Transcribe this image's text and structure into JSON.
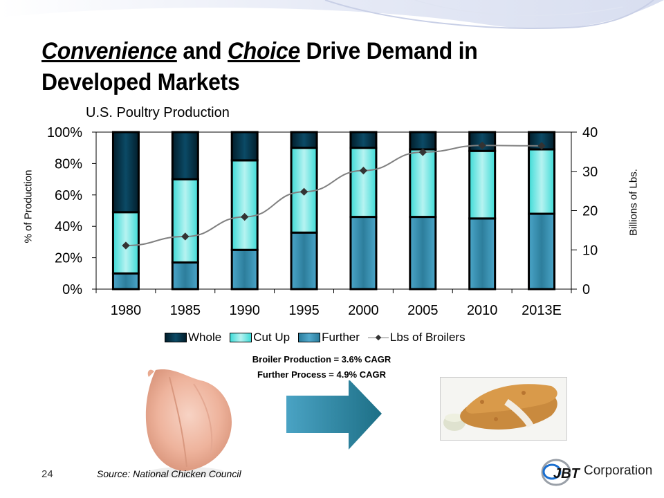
{
  "slide": {
    "title_parts": {
      "w1": "Convenience",
      "w2": " and ",
      "w3": "Choice",
      "w4": " Drive Demand in",
      "line2": "Developed Markets"
    },
    "cagr": [
      "Broiler Production = 3.6% CAGR",
      "Further Process = 4.9% CAGR"
    ],
    "page_number": "24",
    "source": "Source: National Chicken Council",
    "logo": {
      "mark": "JBT",
      "text": "Corporation"
    },
    "images": [
      "raw-whole-chicken",
      "arrow-right",
      "chicken-tenders"
    ]
  },
  "colors": {
    "whole": "#04374d",
    "cut_up": "#7ee8e6",
    "further": "#3e93b5",
    "line": "#808080",
    "marker": "#333333",
    "arrow": "#2f8aa8"
  },
  "chart_data": {
    "type": "bar",
    "stacked": true,
    "title": "U.S. Poultry Production",
    "categories": [
      "1980",
      "1985",
      "1990",
      "1995",
      "2000",
      "2005",
      "2010",
      "2013E"
    ],
    "series": [
      {
        "name": "Further",
        "axis": "left",
        "values": [
          10,
          17,
          25,
          36,
          46,
          46,
          45,
          48
        ]
      },
      {
        "name": "Cut Up",
        "axis": "left",
        "values": [
          39,
          53,
          57,
          54,
          44,
          43,
          43,
          41
        ]
      },
      {
        "name": "Whole",
        "axis": "left",
        "values": [
          51,
          30,
          18,
          10,
          10,
          11,
          12,
          11
        ]
      },
      {
        "name": "Lbs of Broilers",
        "type": "line",
        "axis": "right",
        "values": [
          11.1,
          13.4,
          18.4,
          24.8,
          30.2,
          34.9,
          36.6,
          36.5
        ]
      }
    ],
    "legend": [
      "Whole",
      "Cut Up",
      "Further",
      "Lbs of Broilers"
    ],
    "legend_position": "bottom",
    "ylabel": "% of Production",
    "ylim": [
      0,
      100
    ],
    "yticks": [
      "0%",
      "20%",
      "40%",
      "60%",
      "80%",
      "100%"
    ],
    "y2label": "Billions of Lbs.",
    "y2lim": [
      0,
      40
    ],
    "y2ticks": [
      "0",
      "10",
      "20",
      "30",
      "40"
    ],
    "grid": false
  }
}
